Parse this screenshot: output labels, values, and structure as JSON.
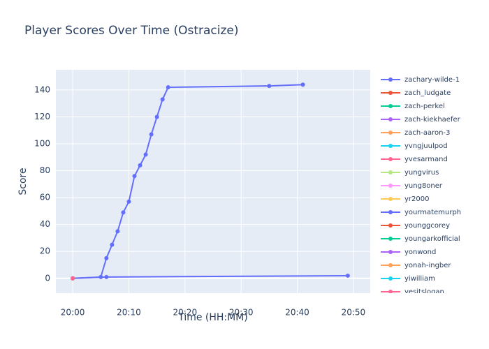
{
  "chart_data": {
    "type": "line",
    "title": "Player Scores Over Time (Ostracize)",
    "x_label": "Time (HH:MM)",
    "y_label": "Score",
    "xlim": [
      "19:57",
      "20:53"
    ],
    "xticks": [
      "20:00",
      "20:10",
      "20:20",
      "20:30",
      "20:40",
      "20:50"
    ],
    "ylim": [
      -11,
      155
    ],
    "yticks": [
      0,
      20,
      40,
      60,
      80,
      100,
      120,
      140
    ],
    "grid": true,
    "legend": "right",
    "series": [
      {
        "name": "zachary-wilde-1",
        "color": "#636efa",
        "x": [
          "20:00",
          "20:05",
          "20:06",
          "20:07",
          "20:08",
          "20:09",
          "20:10",
          "20:11",
          "20:12",
          "20:13",
          "20:14",
          "20:15",
          "20:16",
          "20:17",
          "20:35",
          "20:41"
        ],
        "values": [
          0,
          1,
          15,
          25,
          35,
          49,
          57,
          76,
          84,
          92,
          107,
          120,
          133,
          142,
          143,
          144
        ]
      },
      {
        "name": "zach_ludgate",
        "color": "#EF553B",
        "x": [
          "20:00"
        ],
        "values": [
          0
        ]
      },
      {
        "name": "zach-perkel",
        "color": "#00cc96",
        "x": [
          "20:00"
        ],
        "values": [
          0
        ]
      },
      {
        "name": "zach-kiekhaefer",
        "color": "#ab63fa",
        "x": [
          "20:00"
        ],
        "values": [
          0
        ]
      },
      {
        "name": "zach-aaron-3",
        "color": "#FFA15A",
        "x": [
          "20:00"
        ],
        "values": [
          0
        ]
      },
      {
        "name": "yvngjuulpod",
        "color": "#19d3f3",
        "x": [
          "20:00"
        ],
        "values": [
          0
        ]
      },
      {
        "name": "yvesarmand",
        "color": "#FF6692",
        "x": [
          "20:00"
        ],
        "values": [
          0
        ]
      },
      {
        "name": "yungvirus",
        "color": "#B6E880",
        "x": [
          "20:00"
        ],
        "values": [
          0
        ]
      },
      {
        "name": "yung8oner",
        "color": "#FF97FF",
        "x": [
          "20:00"
        ],
        "values": [
          0
        ]
      },
      {
        "name": "yr2000",
        "color": "#FECB52",
        "x": [
          "20:00"
        ],
        "values": [
          0
        ]
      },
      {
        "name": "yourmatemurph",
        "color": "#636efa",
        "x": [
          "20:00",
          "20:06",
          "20:49"
        ],
        "values": [
          0,
          1,
          2
        ]
      },
      {
        "name": "younggcorey",
        "color": "#EF553B",
        "x": [
          "20:00"
        ],
        "values": [
          0
        ]
      },
      {
        "name": "youngarkofficial",
        "color": "#00cc96",
        "x": [
          "20:00"
        ],
        "values": [
          0
        ]
      },
      {
        "name": "yonwond",
        "color": "#ab63fa",
        "x": [
          "20:00"
        ],
        "values": [
          0
        ]
      },
      {
        "name": "yonah-ingber",
        "color": "#FFA15A",
        "x": [
          "20:00"
        ],
        "values": [
          0
        ]
      },
      {
        "name": "yiwilliam",
        "color": "#19d3f3",
        "x": [
          "20:00"
        ],
        "values": [
          0
        ]
      },
      {
        "name": "yesitslogan",
        "color": "#FF6692",
        "x": [
          "20:00"
        ],
        "values": [
          0
        ]
      }
    ]
  }
}
